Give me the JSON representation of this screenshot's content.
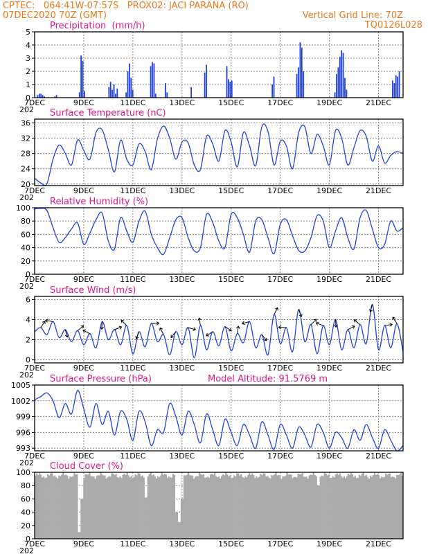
{
  "header": {
    "line1_left": "CPTEC:   064:41W-07:57S   PROX02: JACI PARANA (RO)",
    "line2_left": "07DEC2020 70Z (GMT)",
    "line2_right": "Vertical Grid Line: 70Z",
    "line3_right": "TQ0126L028"
  },
  "colors": {
    "header": "#e87a1e",
    "title": "#e0168a",
    "line": "#1f3fe0",
    "cloud": "#aaaaaa"
  },
  "x_axis": {
    "labels": [
      "7DEC",
      "9DEC",
      "11DEC",
      "13DEC",
      "15DEC",
      "17DEC",
      "19DEC",
      "21DEC"
    ],
    "partial_label": "202"
  },
  "chart_data": [
    {
      "id": "precip",
      "type": "bar",
      "title": "Precipitation  (mm/h)",
      "yticks": [
        "0",
        "1",
        "2",
        "3",
        "4",
        "5"
      ],
      "ylim": [
        0,
        5
      ],
      "x_unit": "days since 7DEC",
      "events": [
        {
          "x": 0.1,
          "values": [
            0.2,
            0.3,
            0.3,
            0.2,
            0.1
          ]
        },
        {
          "x": 0.8,
          "values": [
            0.1,
            0.2
          ]
        },
        {
          "x": 1.8,
          "values": [
            0.4,
            3.2,
            2.8,
            0.5
          ]
        },
        {
          "x": 3.0,
          "values": [
            0.8,
            1.2,
            0.6,
            1.0,
            0.3,
            0.7
          ]
        },
        {
          "x": 3.7,
          "values": [
            0.4,
            2.0,
            2.6,
            1.5,
            0.6
          ]
        },
        {
          "x": 4.7,
          "values": [
            2.4,
            2.7,
            2.6,
            0.3
          ]
        },
        {
          "x": 5.3,
          "values": [
            1.1,
            0.4
          ]
        },
        {
          "x": 6.35,
          "values": [
            0.8
          ]
        },
        {
          "x": 6.9,
          "values": [
            1.9,
            2.5
          ]
        },
        {
          "x": 7.8,
          "values": [
            2.4,
            1.4,
            1.2,
            1.3
          ]
        },
        {
          "x": 9.65,
          "values": [
            1.0,
            1.6
          ]
        },
        {
          "x": 10.65,
          "values": [
            1.8,
            2.3,
            4.2,
            3.8,
            2.0
          ]
        },
        {
          "x": 12.2,
          "values": [
            0.4,
            1.8,
            2.3,
            3.1,
            3.6,
            3.4,
            1.5,
            0.6
          ]
        },
        {
          "x": 14.55,
          "values": [
            1.3,
            1.1,
            1.7,
            1.6,
            2.0
          ]
        }
      ]
    },
    {
      "id": "temp",
      "type": "line",
      "title": "Surface Temperature (nC)",
      "yticks": [
        "20",
        "24",
        "28",
        "32",
        "36"
      ],
      "ylim": [
        19.6,
        37
      ],
      "x": [
        0,
        0.25,
        0.5,
        0.75,
        1.0,
        1.25,
        1.5,
        1.75,
        2.0,
        2.25,
        2.5,
        2.75,
        3.0,
        3.25,
        3.5,
        3.75,
        4.0,
        4.25,
        4.5,
        4.75,
        5.0,
        5.25,
        5.5,
        5.75,
        6.0,
        6.25,
        6.5,
        6.75,
        7.0,
        7.25,
        7.5,
        7.75,
        8.0,
        8.25,
        8.5,
        8.75,
        9.0,
        9.25,
        9.5,
        9.75,
        10.0,
        10.25,
        10.5,
        10.75,
        11.0,
        11.25,
        11.5,
        11.75,
        12.0,
        12.25,
        12.5,
        12.75,
        13.0,
        13.25,
        13.5,
        13.75,
        14.0,
        14.25,
        14.5,
        14.75,
        15.0
      ],
      "values": [
        21.5,
        20.3,
        20.1,
        26.5,
        30.2,
        28.0,
        25.0,
        31.5,
        28.8,
        26.5,
        33.5,
        34.2,
        29.0,
        23.2,
        31.5,
        26.5,
        25.0,
        30.5,
        28.5,
        23.8,
        31.8,
        35.2,
        32.0,
        26.5,
        31.0,
        30.8,
        25.0,
        23.8,
        32.5,
        30.5,
        26.0,
        34.0,
        31.0,
        24.5,
        33.5,
        30.0,
        24.8,
        35.0,
        33.8,
        25.0,
        31.2,
        30.0,
        24.0,
        33.5,
        35.0,
        28.0,
        33.0,
        30.0,
        25.0,
        34.0,
        32.0,
        25.0,
        29.5,
        34.0,
        32.5,
        26.0,
        30.0,
        25.5,
        27.5,
        28.5,
        28.0
      ]
    },
    {
      "id": "rh",
      "type": "line",
      "title": "Relative Humidity (%)",
      "yticks": [
        "0",
        "20",
        "40",
        "60",
        "80",
        "100"
      ],
      "ylim": [
        0,
        100
      ],
      "x": [
        0,
        0.25,
        0.5,
        0.75,
        1.0,
        1.25,
        1.5,
        1.75,
        2.0,
        2.25,
        2.5,
        2.75,
        3.0,
        3.25,
        3.5,
        3.75,
        4.0,
        4.25,
        4.5,
        4.75,
        5.0,
        5.25,
        5.5,
        5.75,
        6.0,
        6.25,
        6.5,
        6.75,
        7.0,
        7.25,
        7.5,
        7.75,
        8.0,
        8.25,
        8.5,
        8.75,
        9.0,
        9.25,
        9.5,
        9.75,
        10.0,
        10.25,
        10.5,
        10.75,
        11.0,
        11.25,
        11.5,
        11.75,
        12.0,
        12.25,
        12.5,
        12.75,
        13.0,
        13.25,
        13.5,
        13.75,
        14.0,
        14.25,
        14.5,
        14.75,
        15.0
      ],
      "values": [
        98,
        99,
        96,
        70,
        48,
        55,
        68,
        77,
        45,
        62,
        82,
        92,
        50,
        38,
        85,
        65,
        48,
        80,
        95,
        60,
        40,
        30,
        55,
        82,
        85,
        55,
        35,
        40,
        90,
        78,
        50,
        40,
        90,
        85,
        60,
        33,
        80,
        82,
        55,
        31,
        75,
        82,
        58,
        36,
        35,
        55,
        88,
        80,
        40,
        65,
        85,
        55,
        38,
        85,
        96,
        68,
        40,
        45,
        80,
        65,
        70
      ]
    },
    {
      "id": "wind",
      "type": "line",
      "title": "Surface Wind (m/s)",
      "yticks": [
        "0",
        "2",
        "4",
        "6"
      ],
      "ylim": [
        -0.3,
        6.3
      ],
      "x": [
        0,
        0.25,
        0.5,
        0.75,
        1.0,
        1.25,
        1.5,
        1.75,
        2.0,
        2.25,
        2.5,
        2.75,
        3.0,
        3.25,
        3.5,
        3.75,
        4.0,
        4.25,
        4.5,
        4.75,
        5.0,
        5.25,
        5.5,
        5.75,
        6.0,
        6.25,
        6.5,
        6.75,
        7.0,
        7.25,
        7.5,
        7.75,
        8.0,
        8.25,
        8.5,
        8.75,
        9.0,
        9.25,
        9.5,
        9.75,
        10.0,
        10.25,
        10.5,
        10.75,
        11.0,
        11.25,
        11.5,
        11.75,
        12.0,
        12.25,
        12.5,
        12.75,
        13.0,
        13.25,
        13.5,
        13.75,
        14.0,
        14.25,
        14.5,
        14.75,
        15.0
      ],
      "values": [
        2.8,
        3.2,
        2.5,
        3.8,
        2.2,
        3.0,
        1.8,
        2.9,
        1.5,
        2.6,
        1.2,
        3.8,
        2.0,
        3.0,
        1.5,
        3.4,
        0.6,
        2.8,
        1.3,
        3.6,
        1.8,
        2.5,
        0.5,
        2.8,
        1.5,
        3.2,
        0.2,
        3.4,
        1.0,
        2.8,
        1.4,
        3.3,
        0.9,
        2.6,
        1.7,
        3.8,
        1.2,
        2.5,
        0.5,
        4.5,
        1.6,
        3.2,
        0.8,
        5.0,
        1.8,
        3.5,
        0.6,
        3.4,
        1.5,
        4.0,
        1.0,
        3.0,
        1.2,
        3.5,
        1.6,
        5.5,
        1.0,
        3.4,
        1.2,
        3.6,
        0.8
      ]
    },
    {
      "id": "pres",
      "type": "line",
      "title": "Surface Pressure (hPa)",
      "annotation": "Model Altitude: 91.5769 m",
      "yticks": [
        "993",
        "996",
        "999",
        "1002",
        "1005"
      ],
      "ylim": [
        992.5,
        1005
      ],
      "x": [
        0,
        0.25,
        0.5,
        0.75,
        1.0,
        1.25,
        1.5,
        1.75,
        2.0,
        2.25,
        2.5,
        2.75,
        3.0,
        3.25,
        3.5,
        3.75,
        4.0,
        4.25,
        4.5,
        4.75,
        5.0,
        5.25,
        5.5,
        5.75,
        6.0,
        6.25,
        6.5,
        6.75,
        7.0,
        7.25,
        7.5,
        7.75,
        8.0,
        8.25,
        8.5,
        8.75,
        9.0,
        9.25,
        9.5,
        9.75,
        10.0,
        10.25,
        10.5,
        10.75,
        11.0,
        11.25,
        11.5,
        11.75,
        12.0,
        12.25,
        12.5,
        12.75,
        13.0,
        13.25,
        13.5,
        13.75,
        14.0,
        14.25,
        14.5,
        14.75,
        15.0
      ],
      "values": [
        1002.2,
        1002.8,
        1003.5,
        1002.0,
        998.8,
        1001.5,
        999.5,
        1004.0,
        1000.5,
        997.0,
        1001.5,
        997.5,
        1000.0,
        995.5,
        1000.0,
        998.5,
        994.5,
        1000.0,
        998.0,
        993.5,
        996.5,
        996.0,
        1001.5,
        999.0,
        995.5,
        1000.0,
        997.5,
        994.0,
        999.5,
        996.5,
        993.5,
        998.5,
        996.0,
        993.5,
        997.5,
        995.5,
        993.0,
        998.0,
        995.5,
        992.8,
        997.5,
        995.5,
        993.0,
        997.0,
        995.5,
        993.2,
        997.5,
        996.0,
        993.0,
        996.0,
        995.0,
        993.0,
        996.5,
        994.5,
        997.5,
        995.0,
        993.0,
        996.5,
        994.5,
        992.5,
        993.5
      ]
    },
    {
      "id": "cloud",
      "type": "area",
      "title": "Cloud Cover (%)",
      "yticks": [
        "0",
        "20",
        "40",
        "60",
        "80",
        "100"
      ],
      "ylim": [
        0,
        100
      ],
      "base_level": 95,
      "dips": [
        {
          "x": 1.78,
          "value": 10
        },
        {
          "x": 1.9,
          "value": 60
        },
        {
          "x": 4.5,
          "value": 62
        },
        {
          "x": 5.75,
          "value": 40
        },
        {
          "x": 5.85,
          "value": 25
        },
        {
          "x": 5.95,
          "value": 60
        },
        {
          "x": 11.5,
          "value": 80
        }
      ]
    }
  ]
}
